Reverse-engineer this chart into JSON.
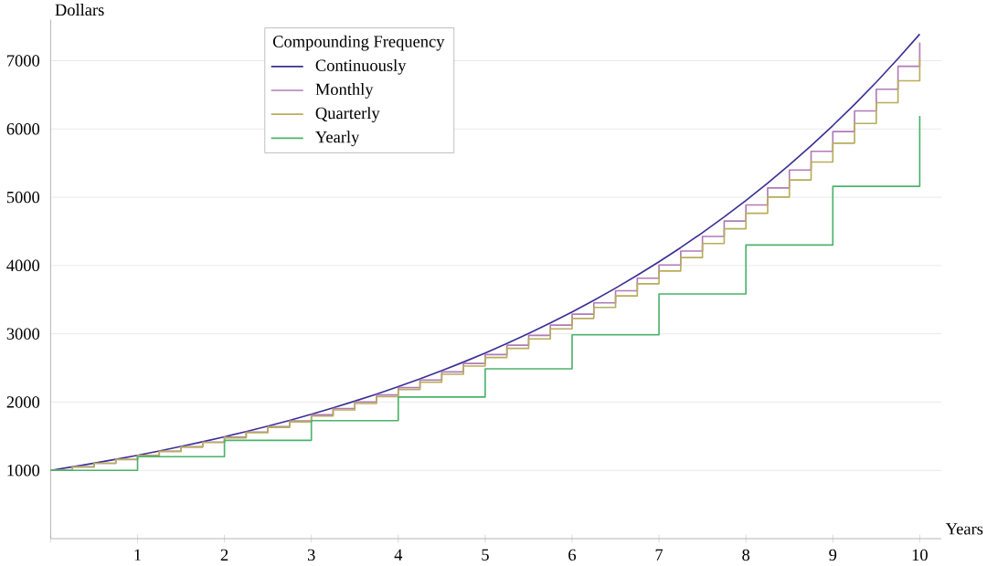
{
  "chart_data": {
    "type": "step",
    "xlabel": "Years",
    "ylabel": "Dollars",
    "legend_title": "Compounding Frequency",
    "xlim": [
      0,
      10.25
    ],
    "ylim": [
      0,
      7600
    ],
    "xticks": [
      {
        "value": 0,
        "label": null
      },
      1,
      2,
      3,
      4,
      5,
      6,
      7,
      8,
      9,
      10
    ],
    "yticks": [
      1000,
      2000,
      3000,
      4000,
      5000,
      6000,
      7000
    ],
    "grid": "y",
    "legend": "top left",
    "series": [
      {
        "name": "Continuously",
        "type": "line",
        "color": "#3b2f94",
        "x": [
          0,
          0.25,
          0.5,
          0.75,
          1,
          1.25,
          1.5,
          1.75,
          2,
          2.25,
          2.5,
          2.75,
          3,
          3.25,
          3.5,
          3.75,
          4,
          4.25,
          4.5,
          4.75,
          5,
          5.25,
          5.5,
          5.75,
          6,
          6.25,
          6.5,
          6.75,
          7,
          7.25,
          7.5,
          7.75,
          8,
          8.25,
          8.5,
          8.75,
          9,
          9.25,
          9.5,
          9.75,
          10
        ],
        "values": [
          1000,
          1051,
          1105,
          1162,
          1221,
          1284,
          1350,
          1419,
          1492,
          1568,
          1649,
          1733,
          1822,
          1916,
          2014,
          2117,
          2226,
          2340,
          2460,
          2586,
          2718,
          2858,
          3004,
          3158,
          3320,
          3490,
          3669,
          3857,
          4055,
          4263,
          4482,
          4711,
          4953,
          5207,
          5474,
          5755,
          6050,
          6360,
          6686,
          7029,
          7389
        ]
      },
      {
        "name": "Monthly",
        "color": "#b07ab8",
        "x": [
          0,
          0.25,
          0.5,
          0.75,
          1,
          1.25,
          1.5,
          1.75,
          2,
          2.25,
          2.5,
          2.75,
          3,
          3.25,
          3.5,
          3.75,
          4,
          4.25,
          4.5,
          4.75,
          5,
          5.25,
          5.5,
          5.75,
          6,
          6.25,
          6.5,
          6.75,
          7,
          7.25,
          7.5,
          7.75,
          8,
          8.25,
          8.5,
          8.75,
          9,
          9.25,
          9.5,
          9.75,
          10
        ],
        "values": [
          1000,
          1051,
          1104,
          1161,
          1219,
          1281,
          1347,
          1415,
          1487,
          1562,
          1642,
          1725,
          1813,
          1906,
          2002,
          2104,
          2212,
          2324,
          2442,
          2566,
          2696,
          2833,
          2977,
          3128,
          3287,
          3454,
          3630,
          3814,
          4008,
          4212,
          4426,
          4651,
          4888,
          5137,
          5398,
          5673,
          5962,
          6264,
          6582,
          6917,
          7268
        ]
      },
      {
        "name": "Quarterly",
        "color": "#b8ad5a",
        "x": [
          0,
          0.25,
          0.5,
          0.75,
          1,
          1.25,
          1.5,
          1.75,
          2,
          2.25,
          2.5,
          2.75,
          3,
          3.25,
          3.5,
          3.75,
          4,
          4.25,
          4.5,
          4.75,
          5,
          5.25,
          5.5,
          5.75,
          6,
          6.25,
          6.5,
          6.75,
          7,
          7.25,
          7.5,
          7.75,
          8,
          8.25,
          8.5,
          8.75,
          9,
          9.25,
          9.5,
          9.75,
          10
        ],
        "values": [
          1000,
          1050,
          1103,
          1158,
          1216,
          1276,
          1340,
          1407,
          1477,
          1551,
          1629,
          1710,
          1796,
          1886,
          1980,
          2079,
          2183,
          2292,
          2407,
          2527,
          2653,
          2786,
          2925,
          3072,
          3225,
          3386,
          3556,
          3733,
          3920,
          4116,
          4322,
          4538,
          4765,
          5003,
          5253,
          5516,
          5792,
          6081,
          6385,
          6705,
          7040
        ]
      },
      {
        "name": "Yearly",
        "color": "#4bb36a",
        "x": [
          0,
          1,
          2,
          3,
          4,
          5,
          6,
          7,
          8,
          9,
          10
        ],
        "values": [
          1000,
          1200,
          1440,
          1728,
          2074,
          2488,
          2986,
          3583,
          4300,
          5160,
          6192
        ]
      }
    ]
  }
}
